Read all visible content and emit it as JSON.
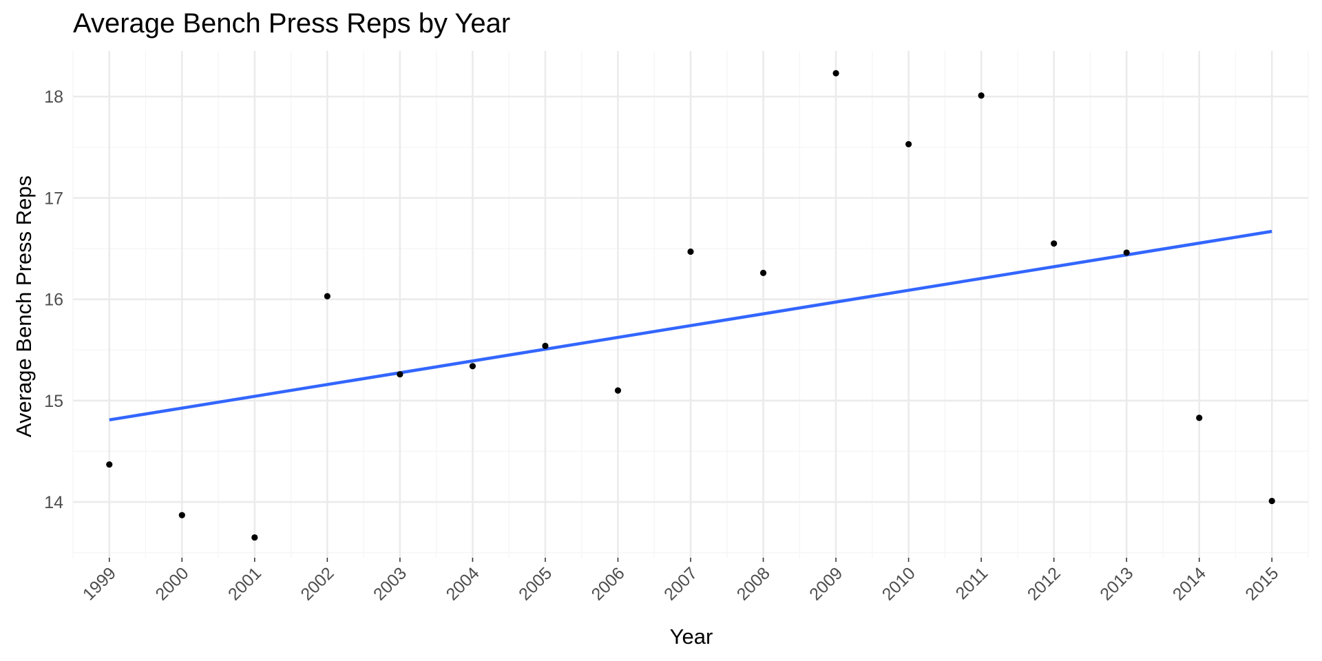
{
  "chart_data": {
    "type": "scatter",
    "title": "Average Bench Press Reps by Year",
    "xlabel": "Year",
    "ylabel": "Average Bench Press Reps",
    "x_ticks": [
      "1999",
      "2000",
      "2001",
      "2002",
      "2003",
      "2004",
      "2005",
      "2006",
      "2007",
      "2008",
      "2009",
      "2010",
      "2011",
      "2012",
      "2013",
      "2014",
      "2015"
    ],
    "y_ticks": [
      14,
      15,
      16,
      17,
      18
    ],
    "xlim": [
      1998.5,
      2015.5
    ],
    "ylim": [
      13.45,
      18.45
    ],
    "grid": true,
    "legend": "none",
    "colors": {
      "points": "#000000",
      "trend": "#3366FF"
    },
    "series": [
      {
        "x": [
          1999,
          2000,
          2001,
          2002,
          2003,
          2004,
          2005,
          2006,
          2007,
          2008,
          2009,
          2010,
          2011,
          2012,
          2013,
          2014,
          2015
        ],
        "y": [
          14.37,
          13.87,
          13.65,
          16.03,
          15.26,
          15.34,
          15.54,
          15.1,
          16.47,
          16.26,
          18.23,
          17.53,
          18.01,
          16.55,
          16.46,
          14.83,
          14.01
        ]
      }
    ],
    "trend_line": {
      "method": "linear",
      "x": [
        1999,
        2015
      ],
      "y": [
        14.81,
        16.67
      ]
    }
  }
}
